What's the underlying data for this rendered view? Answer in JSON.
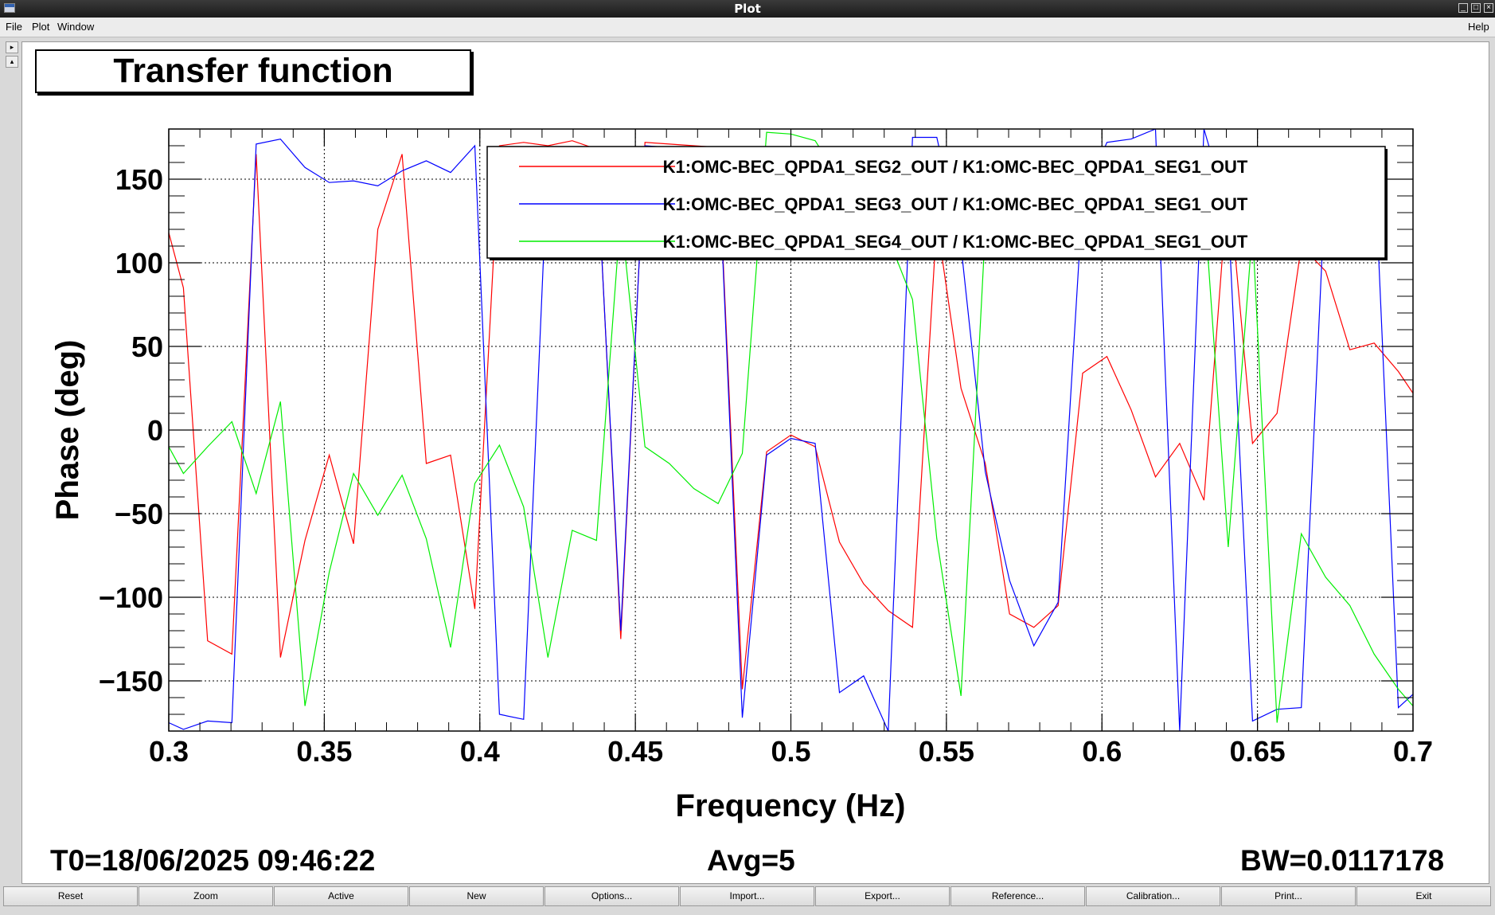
{
  "window": {
    "title": "Plot"
  },
  "menu": {
    "file": "File",
    "plot": "Plot",
    "window": "Window",
    "help": "Help"
  },
  "plot_title": "Transfer function",
  "chart_data": {
    "type": "line",
    "title": "Transfer function",
    "xlabel": "Frequency (Hz)",
    "ylabel": "Phase (deg)",
    "xlim": [
      0.3,
      0.7
    ],
    "ylim": [
      -180,
      180
    ],
    "x_ticks": [
      0.3,
      0.35,
      0.4,
      0.45,
      0.5,
      0.55,
      0.6,
      0.65,
      0.7
    ],
    "x_tick_labels": [
      "0.3",
      "0.35",
      "0.4",
      "0.45",
      "0.5",
      "0.55",
      "0.6",
      "0.65",
      "0.7"
    ],
    "y_ticks": [
      150,
      100,
      50,
      0,
      -50,
      -100,
      -150
    ],
    "y_tick_labels": [
      "150",
      "100",
      "50",
      "0",
      "−50",
      "−100",
      "−150"
    ],
    "grid": true,
    "legend_position": "top-right",
    "x": [
      0.3,
      0.3047,
      0.3125,
      0.3203,
      0.3281,
      0.3359,
      0.3438,
      0.3516,
      0.3594,
      0.3672,
      0.375,
      0.3828,
      0.3906,
      0.3984,
      0.4063,
      0.4141,
      0.4219,
      0.4297,
      0.4375,
      0.4453,
      0.4531,
      0.4609,
      0.4688,
      0.4766,
      0.4844,
      0.4922,
      0.5,
      0.5078,
      0.5156,
      0.5234,
      0.5313,
      0.5391,
      0.5469,
      0.5547,
      0.5625,
      0.5703,
      0.5781,
      0.5859,
      0.5938,
      0.6016,
      0.6094,
      0.6172,
      0.625,
      0.6328,
      0.6406,
      0.6484,
      0.6563,
      0.6641,
      0.6719,
      0.6797,
      0.6875,
      0.6953,
      0.7
    ],
    "series": [
      {
        "name": "K1:OMC-BEC_QPDA1_SEG2_OUT / K1:OMC-BEC_QPDA1_SEG1_OUT",
        "color": "#ff0000",
        "values": [
          118,
          85,
          -126,
          -134,
          165,
          -136,
          -66,
          -15,
          -68,
          120,
          165,
          -20,
          -15,
          -107,
          170,
          172,
          170,
          173,
          168,
          -125,
          172,
          171,
          170,
          169,
          -155,
          -13,
          -3,
          -10,
          -67,
          -92,
          -108,
          -118,
          125,
          25,
          -20,
          -110,
          -118,
          -105,
          34,
          44,
          12,
          -28,
          -8,
          -42,
          150,
          -8,
          10,
          110,
          95,
          48,
          52,
          35,
          22
        ]
      },
      {
        "name": "K1:OMC-BEC_QPDA1_SEG3_OUT / K1:OMC-BEC_QPDA1_SEG1_OUT",
        "color": "#0000ff",
        "values": [
          -175,
          -179,
          -174,
          -175,
          171,
          174,
          157,
          148,
          149,
          146,
          155,
          161,
          154,
          170,
          -170,
          -173,
          165,
          168,
          166,
          -120,
          170,
          169,
          166,
          168,
          -172,
          -15,
          -5,
          -8,
          -157,
          -147,
          -180,
          175,
          175,
          110,
          -25,
          -90,
          -129,
          -103,
          138,
          172,
          174,
          180,
          -180,
          180,
          130,
          -174,
          -167,
          -166,
          150,
          160,
          165,
          -166,
          -158
        ]
      },
      {
        "name": "K1:OMC-BEC_QPDA1_SEG4_OUT / K1:OMC-BEC_QPDA1_SEG1_OUT",
        "color": "#00ee00",
        "values": [
          -10,
          -26,
          -10,
          5,
          -38,
          17,
          -165,
          -85,
          -26,
          -51,
          -27,
          -65,
          -130,
          -32,
          -9,
          -46,
          -136,
          -60,
          -66,
          130,
          -10,
          -20,
          -35,
          -44,
          -14,
          178,
          177,
          173,
          150,
          135,
          115,
          78,
          -65,
          -159,
          120,
          110,
          108,
          130,
          165,
          150,
          140,
          135,
          140,
          138,
          -70,
          120,
          -175,
          -62,
          -88,
          -105,
          -134,
          -155,
          -165
        ]
      }
    ]
  },
  "footer": {
    "t0": "T0=18/06/2025 09:46:22",
    "avg": "Avg=5",
    "bw": "BW=0.0117178"
  },
  "buttons": [
    "Reset",
    "Zoom",
    "Active",
    "New",
    "Options...",
    "Import...",
    "Export...",
    "Reference...",
    "Calibration...",
    "Print...",
    "Exit"
  ]
}
